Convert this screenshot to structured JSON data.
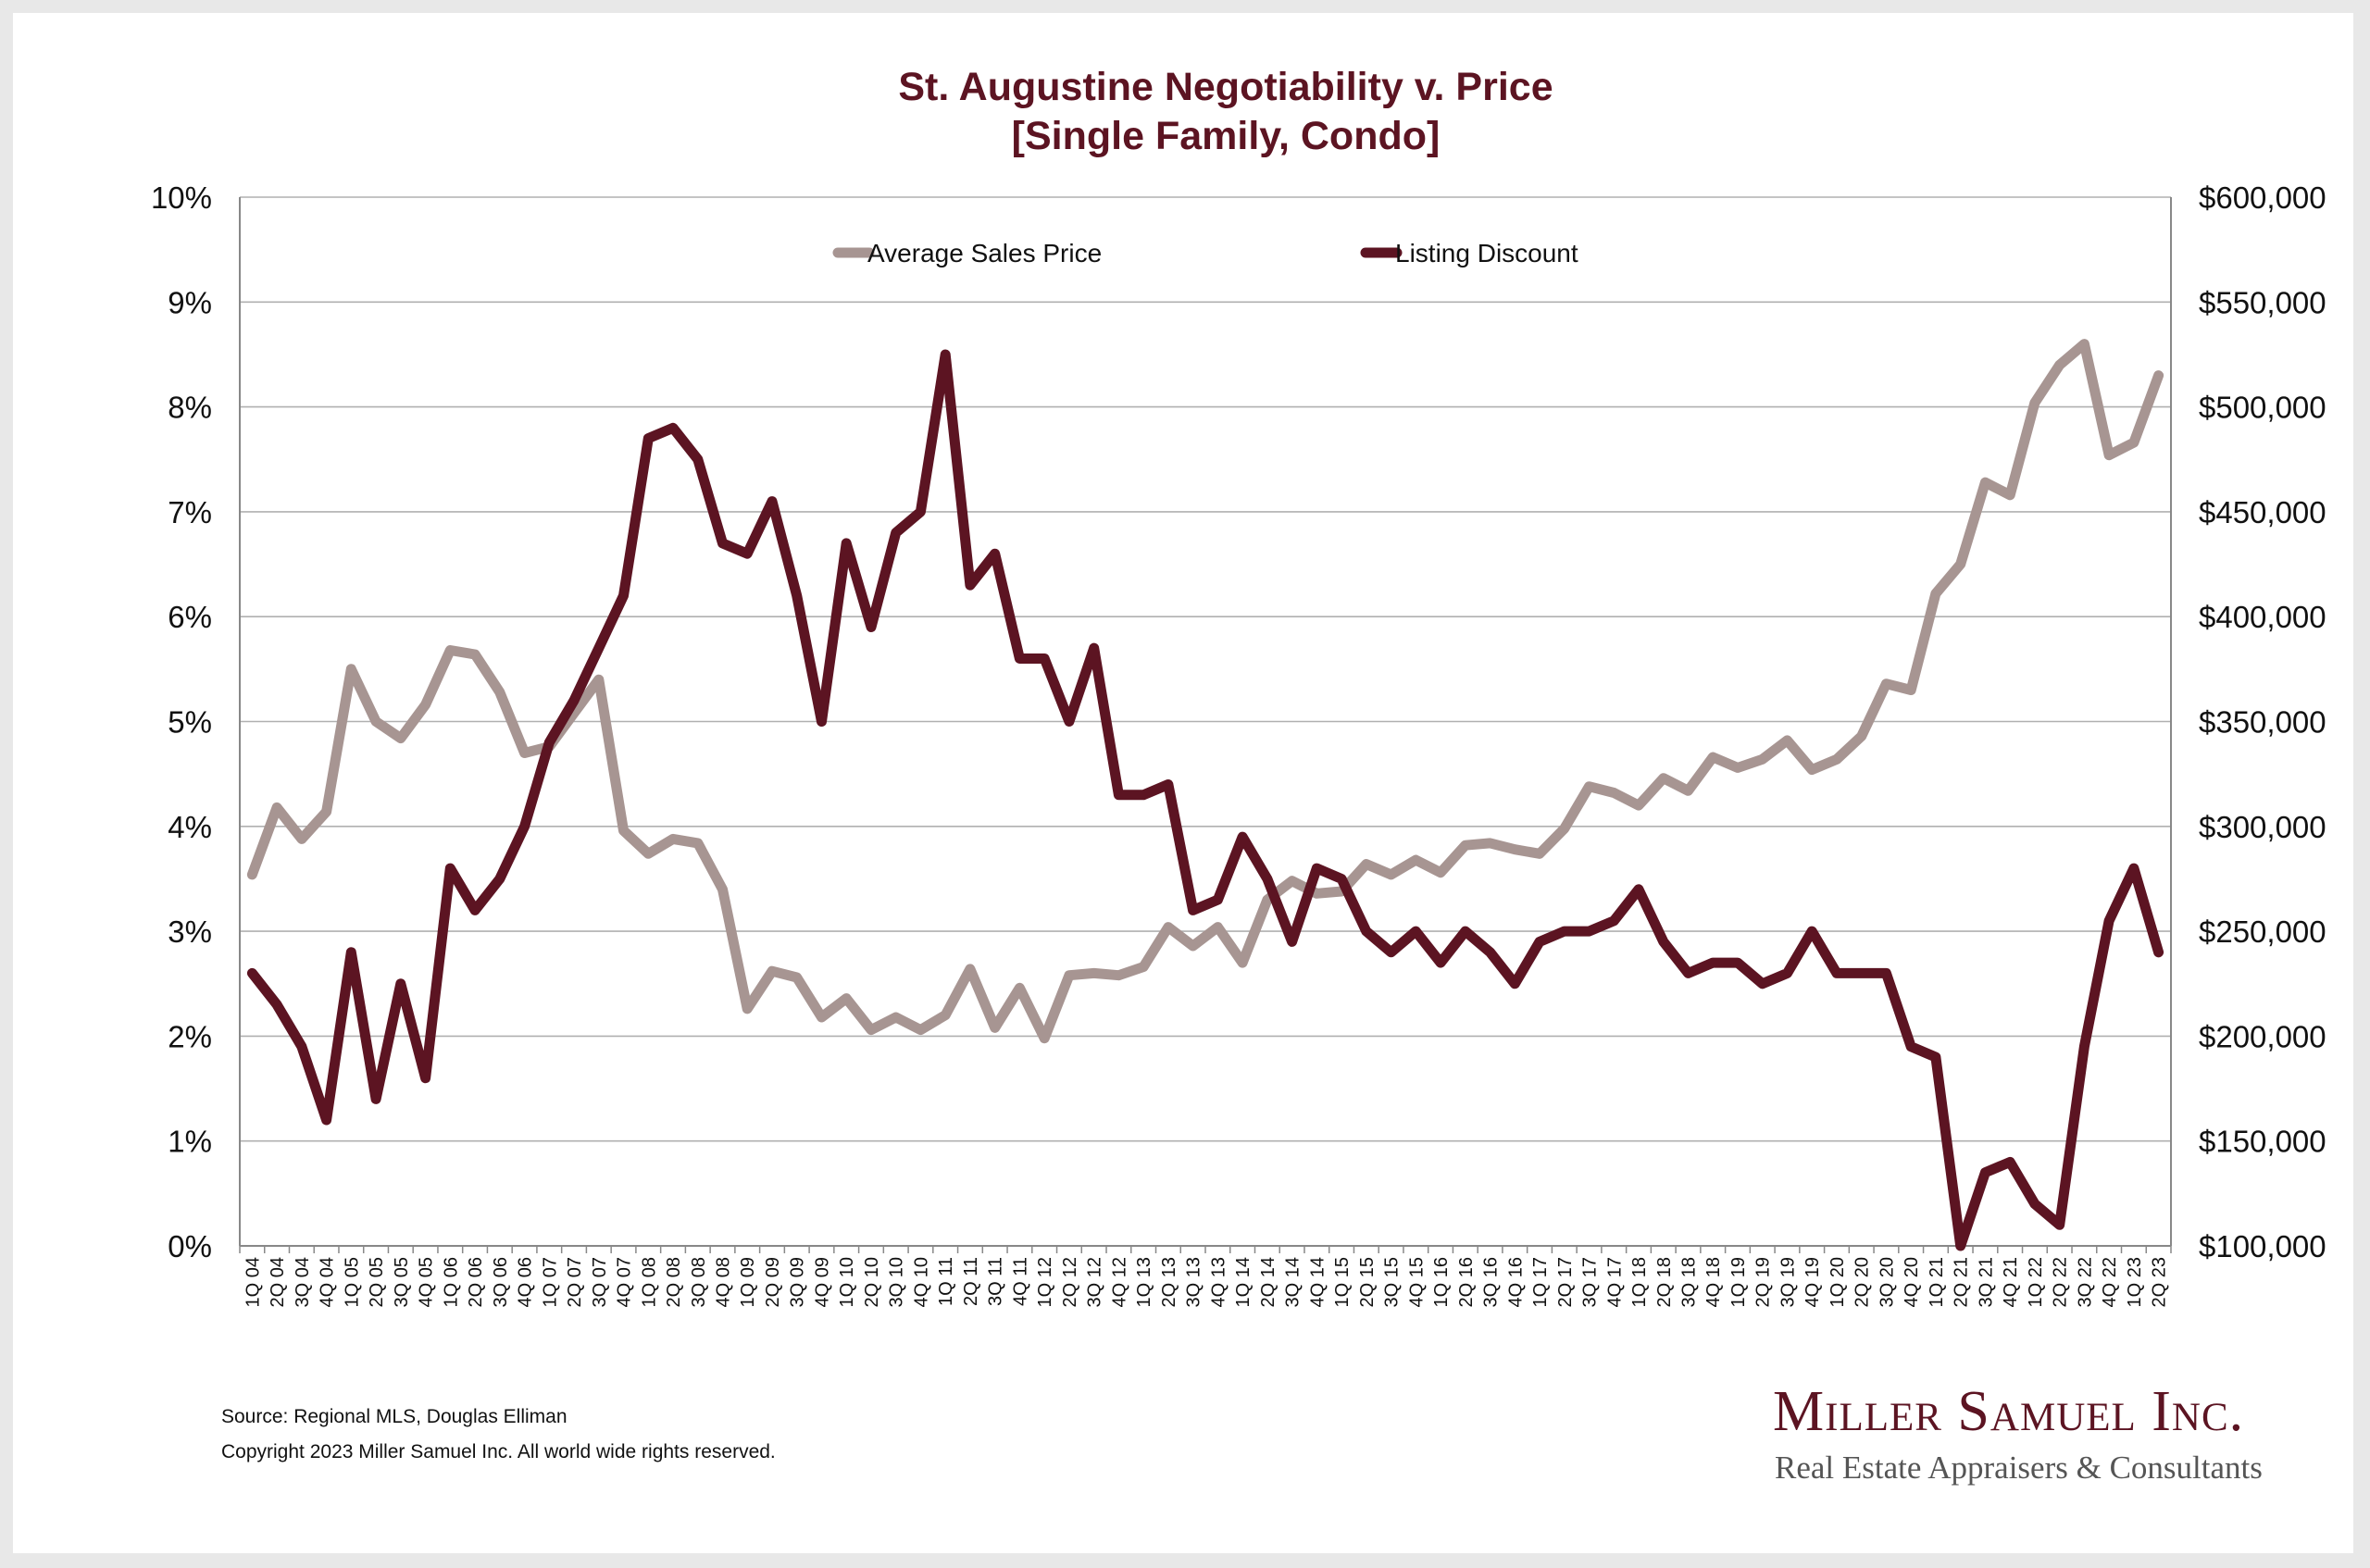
{
  "chart_data": {
    "type": "line",
    "title": "St. Augustine Negotiability v. Price",
    "subtitle": "[Single Family, Condo]",
    "categories": [
      "1Q 04",
      "2Q 04",
      "3Q 04",
      "4Q 04",
      "1Q 05",
      "2Q 05",
      "3Q 05",
      "4Q 05",
      "1Q 06",
      "2Q 06",
      "3Q 06",
      "4Q 06",
      "1Q 07",
      "2Q 07",
      "3Q 07",
      "4Q 07",
      "1Q 08",
      "2Q 08",
      "3Q 08",
      "4Q 08",
      "1Q 09",
      "2Q 09",
      "3Q 09",
      "4Q 09",
      "1Q 10",
      "2Q 10",
      "3Q 10",
      "4Q 10",
      "1Q 11",
      "2Q 11",
      "3Q 11",
      "4Q 11",
      "1Q 12",
      "2Q 12",
      "3Q 12",
      "4Q 12",
      "1Q 13",
      "2Q 13",
      "3Q 13",
      "4Q 13",
      "1Q 14",
      "2Q 14",
      "3Q 14",
      "4Q 14",
      "1Q 15",
      "2Q 15",
      "3Q 15",
      "4Q 15",
      "1Q 16",
      "2Q 16",
      "3Q 16",
      "4Q 16",
      "1Q 17",
      "2Q 17",
      "3Q 17",
      "4Q 17",
      "1Q 18",
      "2Q 18",
      "3Q 18",
      "4Q 18",
      "1Q 19",
      "2Q 19",
      "3Q 19",
      "4Q 19",
      "1Q 20",
      "2Q 20",
      "3Q 20",
      "4Q 20",
      "1Q 21",
      "2Q 21",
      "3Q 21",
      "4Q 21",
      "1Q 22",
      "2Q 22",
      "3Q 22",
      "4Q 22",
      "1Q 23",
      "2Q 23"
    ],
    "y_left": {
      "ticks": [
        "0%",
        "1%",
        "2%",
        "3%",
        "4%",
        "5%",
        "6%",
        "7%",
        "8%",
        "9%",
        "10%"
      ],
      "ylim": [
        0,
        10
      ]
    },
    "y_right": {
      "ticks": [
        "$100,000",
        "$150,000",
        "$200,000",
        "$250,000",
        "$300,000",
        "$350,000",
        "$400,000",
        "$450,000",
        "$500,000",
        "$550,000",
        "$600,000"
      ],
      "ylim": [
        100000,
        600000
      ]
    },
    "grid": true,
    "legend_position": "top-center",
    "series": [
      {
        "name": "Average Sales Price",
        "axis": "right",
        "color": "#a79592",
        "values": [
          277000,
          309000,
          294000,
          307000,
          375000,
          350000,
          342000,
          358000,
          384000,
          382000,
          364000,
          335000,
          338000,
          354000,
          370000,
          298000,
          287000,
          294000,
          292000,
          270000,
          213000,
          231000,
          228000,
          209000,
          218000,
          203000,
          209000,
          203000,
          210000,
          232000,
          204000,
          223000,
          199000,
          229000,
          230000,
          229000,
          233000,
          252000,
          243000,
          252000,
          235000,
          265000,
          274000,
          268000,
          269000,
          282000,
          277000,
          284000,
          278000,
          291000,
          292000,
          289000,
          287000,
          299000,
          319000,
          316000,
          310000,
          323000,
          317000,
          333000,
          328000,
          332000,
          341000,
          327000,
          332000,
          343000,
          368000,
          365000,
          411000,
          425000,
          464000,
          458000,
          502000,
          520000,
          530000,
          477000,
          483000,
          515000
        ]
      },
      {
        "name": "Listing Discount",
        "axis": "left",
        "color": "#5c1422",
        "values": [
          2.6,
          2.3,
          1.9,
          1.2,
          2.8,
          1.4,
          2.5,
          1.6,
          3.6,
          3.2,
          3.5,
          4.0,
          4.8,
          5.2,
          5.7,
          6.2,
          7.7,
          7.8,
          7.5,
          6.7,
          6.6,
          7.1,
          6.2,
          5.0,
          6.7,
          5.9,
          6.8,
          7.0,
          8.5,
          6.3,
          6.6,
          5.6,
          5.6,
          5.0,
          5.7,
          4.3,
          4.3,
          4.4,
          3.2,
          3.3,
          3.9,
          3.5,
          2.9,
          3.6,
          3.5,
          3.0,
          2.8,
          3.0,
          2.7,
          3.0,
          2.8,
          2.5,
          2.9,
          3.0,
          3.0,
          3.1,
          3.4,
          2.9,
          2.6,
          2.7,
          2.7,
          2.5,
          2.6,
          3.0,
          2.6,
          2.6,
          2.6,
          1.9,
          1.8,
          0.0,
          0.7,
          0.8,
          0.4,
          0.2,
          1.9,
          3.1,
          3.6,
          2.8
        ]
      }
    ]
  },
  "footer": {
    "source": "Source: Regional MLS, Douglas Elliman",
    "copyright": "Copyright 2023 Miller Samuel Inc.  All world wide rights reserved."
  },
  "brand": {
    "name": "Miller Samuel Inc.",
    "tagline": "Real Estate Appraisers & Consultants"
  }
}
